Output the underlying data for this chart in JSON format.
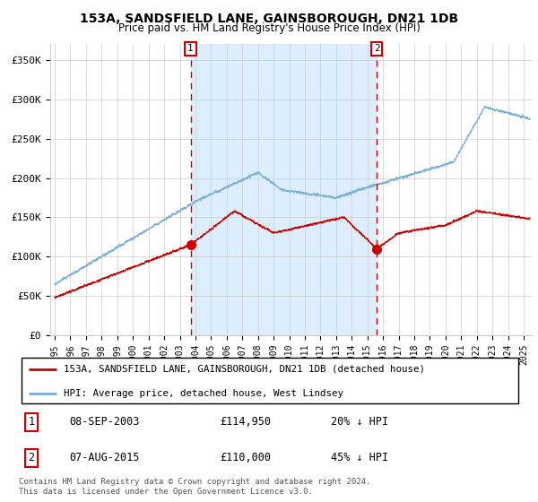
{
  "title": "153A, SANDSFIELD LANE, GAINSBOROUGH, DN21 1DB",
  "subtitle": "Price paid vs. HM Land Registry's House Price Index (HPI)",
  "red_label": "153A, SANDSFIELD LANE, GAINSBOROUGH, DN21 1DB (detached house)",
  "blue_label": "HPI: Average price, detached house, West Lindsey",
  "annotation1_date": "08-SEP-2003",
  "annotation1_price": "£114,950",
  "annotation1_hpi": "20% ↓ HPI",
  "annotation2_date": "07-AUG-2015",
  "annotation2_price": "£110,000",
  "annotation2_hpi": "45% ↓ HPI",
  "footnote": "Contains HM Land Registry data © Crown copyright and database right 2024.\nThis data is licensed under the Open Government Licence v3.0.",
  "vline1_year": 2003.69,
  "vline2_year": 2015.6,
  "dot1_x": 2003.69,
  "dot1_y": 114950,
  "dot2_x": 2015.6,
  "dot2_y": 110000,
  "ylim": [
    0,
    370000
  ],
  "xlim_start": 1994.7,
  "xlim_end": 2025.5,
  "background_color": "#ffffff",
  "shading_color": "#ddeeff",
  "grid_color": "#cccccc",
  "red_color": "#cc0000",
  "blue_color": "#7ab0d4"
}
